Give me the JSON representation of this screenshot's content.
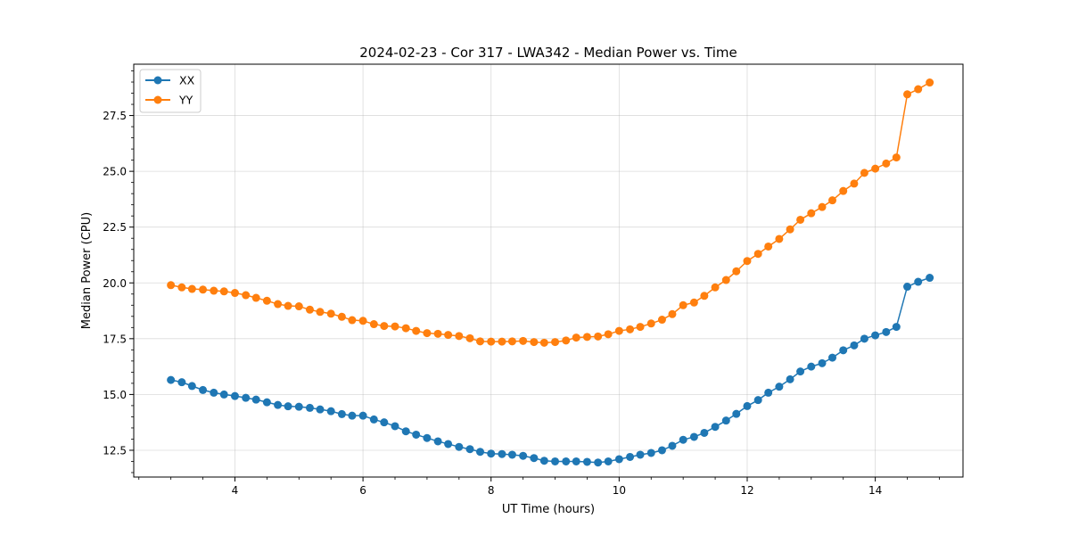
{
  "chart_data": {
    "type": "line",
    "title": "2024-02-23 - Cor 317 - LWA342 - Median Power vs. Time",
    "xlabel": "UT Time (hours)",
    "ylabel": "Median Power (CPU)",
    "xlim": [
      2.42,
      15.37
    ],
    "ylim": [
      11.3,
      29.8
    ],
    "xticks": [
      4,
      6,
      8,
      10,
      12,
      14
    ],
    "xtick_labels": [
      "4",
      "6",
      "8",
      "10",
      "12",
      "14"
    ],
    "yticks": [
      12.5,
      15.0,
      17.5,
      20.0,
      22.5,
      25.0,
      27.5
    ],
    "ytick_labels": [
      "12.5",
      "15.0",
      "17.5",
      "20.0",
      "22.5",
      "25.0",
      "27.5"
    ],
    "grid": true,
    "legend": "top-left",
    "x": [
      3.0,
      3.17,
      3.33,
      3.5,
      3.67,
      3.83,
      4.0,
      4.17,
      4.33,
      4.5,
      4.67,
      4.83,
      5.0,
      5.17,
      5.33,
      5.5,
      5.67,
      5.83,
      6.0,
      6.17,
      6.33,
      6.5,
      6.67,
      6.83,
      7.0,
      7.17,
      7.33,
      7.5,
      7.67,
      7.83,
      8.0,
      8.17,
      8.33,
      8.5,
      8.67,
      8.83,
      9.0,
      9.17,
      9.33,
      9.5,
      9.67,
      9.83,
      10.0,
      10.17,
      10.33,
      10.5,
      10.67,
      10.83,
      11.0,
      11.17,
      11.33,
      11.5,
      11.67,
      11.83,
      12.0,
      12.17,
      12.33,
      12.5,
      12.67,
      12.83,
      13.0,
      13.17,
      13.33,
      13.5,
      13.67,
      13.83,
      14.0,
      14.17,
      14.33,
      14.5,
      14.67,
      14.85
    ],
    "series": [
      {
        "name": "XX",
        "color": "#1f77b4",
        "values": [
          15.65,
          15.55,
          15.38,
          15.2,
          15.08,
          15.0,
          14.93,
          14.85,
          14.77,
          14.65,
          14.53,
          14.47,
          14.45,
          14.4,
          14.33,
          14.25,
          14.12,
          14.05,
          14.05,
          13.88,
          13.75,
          13.58,
          13.35,
          13.2,
          13.05,
          12.9,
          12.78,
          12.65,
          12.55,
          12.43,
          12.35,
          12.33,
          12.3,
          12.25,
          12.15,
          12.03,
          12.0,
          12.0,
          12.0,
          11.98,
          11.95,
          12.0,
          12.1,
          12.2,
          12.3,
          12.38,
          12.5,
          12.7,
          12.97,
          13.1,
          13.28,
          13.55,
          13.83,
          14.13,
          14.48,
          14.75,
          15.08,
          15.35,
          15.68,
          16.03,
          16.25,
          16.4,
          16.65,
          16.98,
          17.2,
          17.5,
          17.65,
          17.8,
          18.03,
          19.83,
          20.05,
          20.23
        ]
      },
      {
        "name": "YY",
        "color": "#ff7f0e",
        "values": [
          19.9,
          19.8,
          19.73,
          19.7,
          19.65,
          19.62,
          19.55,
          19.45,
          19.33,
          19.2,
          19.05,
          18.97,
          18.95,
          18.8,
          18.7,
          18.62,
          18.48,
          18.33,
          18.3,
          18.15,
          18.07,
          18.05,
          17.97,
          17.85,
          17.75,
          17.72,
          17.67,
          17.62,
          17.52,
          17.38,
          17.37,
          17.37,
          17.38,
          17.4,
          17.35,
          17.32,
          17.35,
          17.42,
          17.55,
          17.58,
          17.6,
          17.7,
          17.85,
          17.92,
          18.03,
          18.18,
          18.35,
          18.6,
          19.0,
          19.12,
          19.42,
          19.8,
          20.13,
          20.52,
          20.98,
          21.3,
          21.63,
          21.97,
          22.4,
          22.83,
          23.12,
          23.4,
          23.7,
          24.12,
          24.45,
          24.93,
          25.12,
          25.35,
          25.62,
          28.45,
          28.68,
          28.98
        ]
      }
    ]
  }
}
